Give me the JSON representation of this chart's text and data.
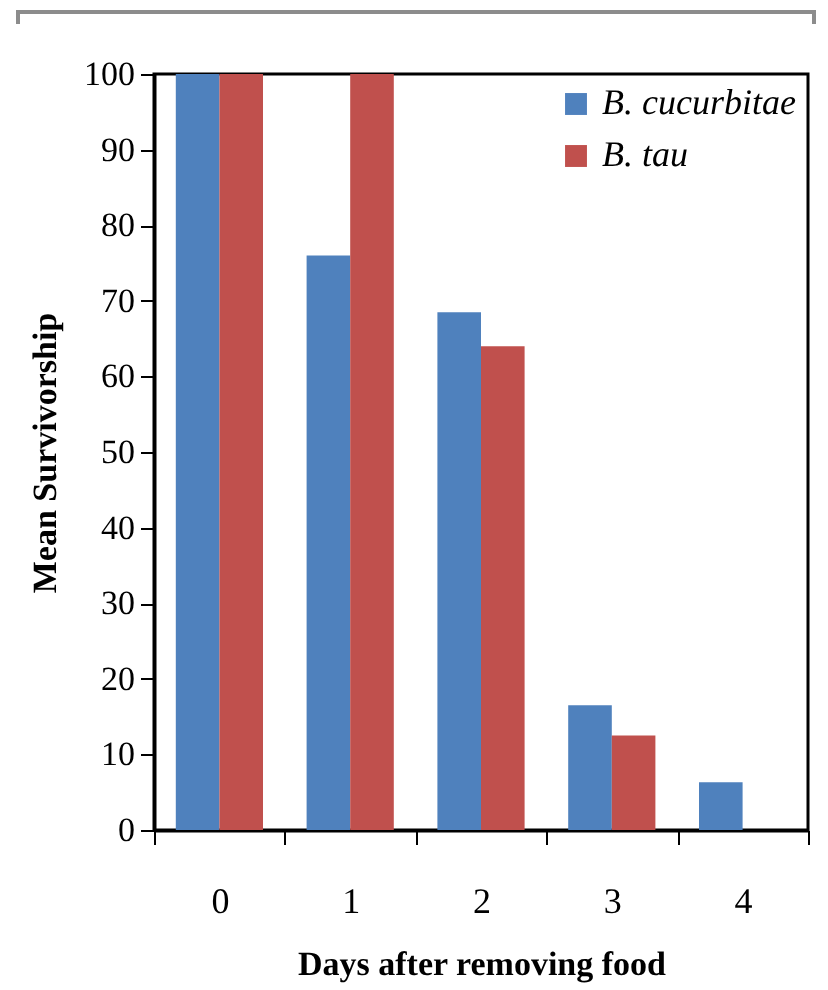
{
  "chart_data": {
    "type": "bar",
    "xlabel": "Days after removing food",
    "ylabel": "Mean Survivorship",
    "categories": [
      "0",
      "1",
      "2",
      "3",
      "4"
    ],
    "series": [
      {
        "name": "B. cucurbitae",
        "color": "#4f81bd",
        "values": [
          100,
          76,
          68.5,
          16.5,
          6.3
        ]
      },
      {
        "name": "B. tau",
        "color": "#c0504d",
        "values": [
          100,
          100,
          64,
          12.5,
          0
        ]
      }
    ],
    "ylim": [
      0,
      100
    ],
    "yticks": [
      0,
      10,
      20,
      30,
      40,
      50,
      60,
      70,
      80,
      90,
      100
    ],
    "grid": false,
    "legend": "top right"
  }
}
